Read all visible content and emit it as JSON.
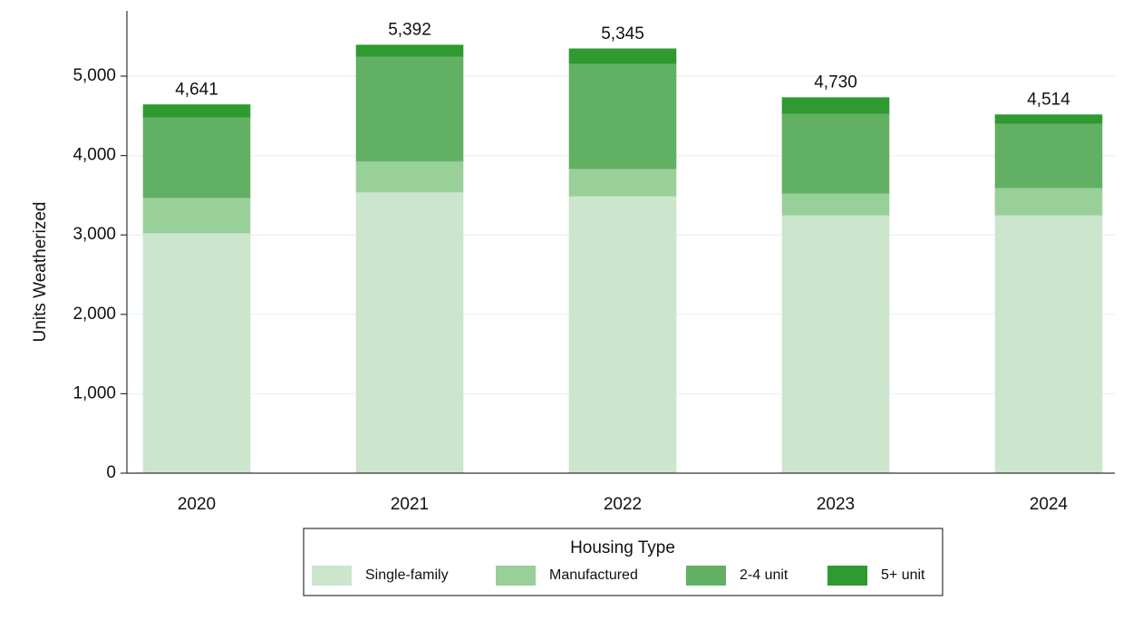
{
  "chart_data": {
    "type": "stacked-bar",
    "y_label": "Units Weatherized",
    "categories": [
      "2020",
      "2021",
      "2022",
      "2023",
      "2024"
    ],
    "series": [
      {
        "name": "Single-family",
        "color": "#cce5cd",
        "values": [
          3025,
          3540,
          3490,
          3250,
          3250
        ]
      },
      {
        "name": "Manufactured",
        "color": "#99cf99",
        "values": [
          445,
          390,
          345,
          275,
          345
        ]
      },
      {
        "name": "2-4 unit",
        "color": "#62b063",
        "values": [
          1016,
          1320,
          1325,
          1005,
          810
        ]
      },
      {
        "name": "5+ unit",
        "color": "#2e9a30",
        "values": [
          155,
          142,
          185,
          200,
          109
        ]
      }
    ],
    "totals": [
      4641,
      5392,
      5345,
      4730,
      4514
    ],
    "total_labels": [
      "4,641",
      "5,392",
      "5,345",
      "4,730",
      "4,514"
    ],
    "legend_title": "Housing Type",
    "ylim": [
      0,
      5500
    ],
    "yticks": [
      0,
      {
        "value": 1000,
        "label": "1,000"
      },
      {
        "value": 2000,
        "label": "2,000"
      },
      {
        "value": 3000,
        "label": "3,000"
      },
      {
        "value": 4000,
        "label": "4,000"
      },
      {
        "value": 5000,
        "label": "5,000"
      }
    ],
    "grid": true
  }
}
